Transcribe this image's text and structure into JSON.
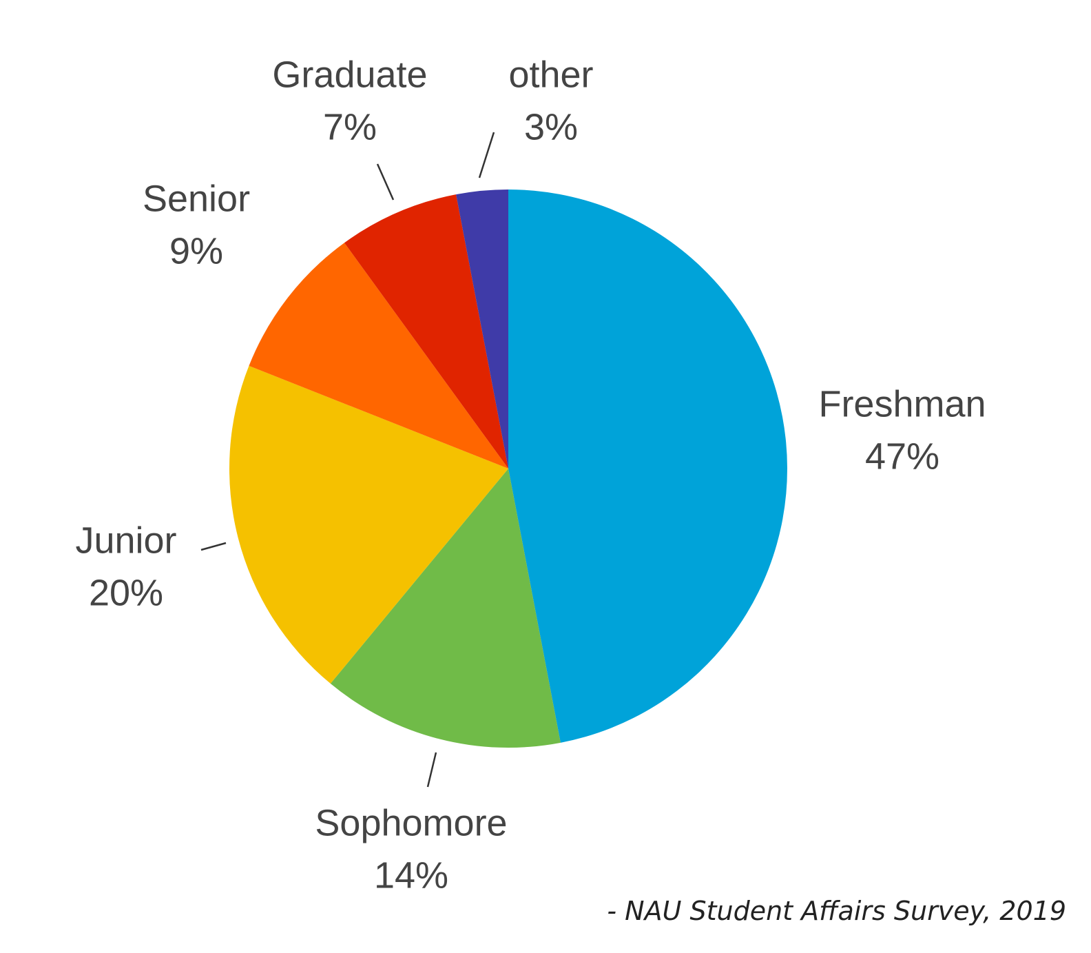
{
  "chart_data": {
    "type": "pie",
    "categories": [
      "Freshman",
      "Sophomore",
      "Junior",
      "Senior",
      "Graduate",
      "other"
    ],
    "values": [
      47,
      14,
      20,
      9,
      7,
      3
    ],
    "value_labels": [
      "47%",
      "14%",
      "20%",
      "9%",
      "7%",
      "3%"
    ],
    "colors": [
      "#00a3d9",
      "#70bb48",
      "#f5c100",
      "#ff6600",
      "#e02400",
      "#3f3ba8"
    ],
    "source": "- NAU Student Affairs Survey, 2019"
  }
}
